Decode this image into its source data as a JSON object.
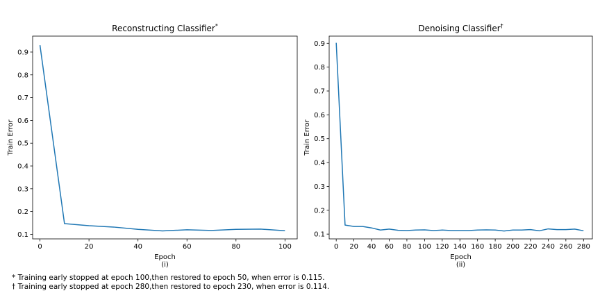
{
  "chart_data": [
    {
      "type": "line",
      "title": "Reconstructing Classifier",
      "title_mark": "*",
      "xlabel": "Epoch",
      "ylabel": "Train Error",
      "panel_label": "(i)",
      "xlim": [
        -3,
        105
      ],
      "ylim": [
        0.08,
        0.97
      ],
      "xticks": [
        0,
        20,
        40,
        60,
        80,
        100
      ],
      "yticks": [
        0.1,
        0.2,
        0.3,
        0.4,
        0.5,
        0.6,
        0.7,
        0.8,
        0.9
      ],
      "grid": false,
      "line_color": "#1f77b4",
      "series": [
        {
          "x": [
            0,
            10,
            20,
            30,
            40,
            50,
            60,
            70,
            80,
            90,
            100
          ],
          "values": [
            0.93,
            0.147,
            0.138,
            0.132,
            0.122,
            0.115,
            0.12,
            0.117,
            0.122,
            0.123,
            0.116
          ]
        }
      ]
    },
    {
      "type": "line",
      "title": "Denoising Classifier",
      "title_mark": "†",
      "xlabel": "Epoch",
      "ylabel": "Train Error",
      "panel_label": "(ii)",
      "xlim": [
        -8,
        290
      ],
      "ylim": [
        0.08,
        0.93
      ],
      "xticks": [
        0,
        20,
        40,
        60,
        80,
        100,
        120,
        140,
        160,
        180,
        200,
        220,
        240,
        260,
        280
      ],
      "yticks": [
        0.1,
        0.2,
        0.3,
        0.4,
        0.5,
        0.6,
        0.7,
        0.8,
        0.9
      ],
      "grid": false,
      "line_color": "#1f77b4",
      "series": [
        {
          "x": [
            0,
            10,
            20,
            30,
            40,
            50,
            60,
            70,
            80,
            90,
            100,
            110,
            120,
            130,
            140,
            150,
            160,
            170,
            180,
            190,
            200,
            210,
            220,
            230,
            240,
            250,
            260,
            270,
            280
          ],
          "values": [
            0.902,
            0.138,
            0.132,
            0.132,
            0.126,
            0.117,
            0.121,
            0.116,
            0.115,
            0.117,
            0.118,
            0.115,
            0.117,
            0.115,
            0.115,
            0.115,
            0.117,
            0.118,
            0.117,
            0.113,
            0.117,
            0.117,
            0.119,
            0.114,
            0.122,
            0.119,
            0.119,
            0.121,
            0.114
          ]
        }
      ]
    }
  ],
  "footnotes": [
    "* Training early stopped at epoch 100,then restored to epoch 50, when error is 0.115.",
    "† Training early stopped at epoch 280,then restored to epoch 230, when error is 0.114."
  ]
}
